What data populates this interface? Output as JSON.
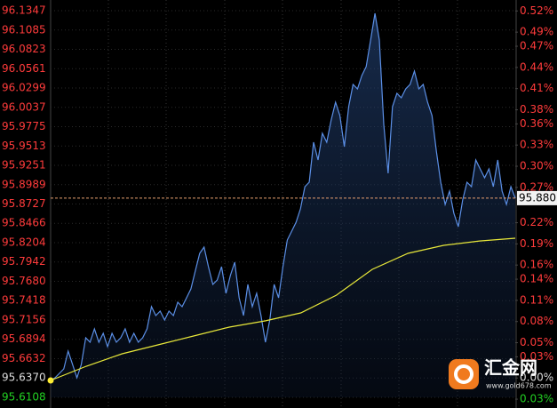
{
  "chart_data": {
    "type": "line",
    "ylim": [
      95.6108,
      96.1347
    ],
    "yticks": [
      96.1347,
      96.1085,
      96.0823,
      96.0561,
      96.0299,
      96.0037,
      95.9775,
      95.9513,
      95.9251,
      95.8989,
      95.8727,
      95.8466,
      95.8204,
      95.7942,
      {
        "value": 95.768,
        "label": "95.7680"
      },
      95.7418,
      95.7156,
      95.6894,
      95.6632,
      {
        "value": 95.637,
        "label": "95.6370"
      },
      95.6108
    ],
    "y2lim": [
      -0.0274,
      0.5204
    ],
    "y2ticks": [
      {
        "value": 0.52,
        "label": "0.52%"
      },
      {
        "value": 0.49,
        "label": "0.49%"
      },
      {
        "value": 0.47,
        "label": "0.47%"
      },
      {
        "value": 0.44,
        "label": "0.44%"
      },
      {
        "value": 0.41,
        "label": "0.41%"
      },
      {
        "value": 0.38,
        "label": "0.38%"
      },
      {
        "value": 0.36,
        "label": "0.36%"
      },
      {
        "value": 0.33,
        "label": "0.33%"
      },
      {
        "value": 0.3,
        "label": "0.30%"
      },
      {
        "value": 0.27,
        "label": "0.27%"
      },
      {
        "value": 0.22,
        "label": "0.22%"
      },
      {
        "value": 0.19,
        "label": "0.19%"
      },
      {
        "value": 0.16,
        "label": "0.16%"
      },
      {
        "value": 0.14,
        "label": "0.14%"
      },
      {
        "value": 0.11,
        "label": "0.11%"
      },
      {
        "value": 0.08,
        "label": "0.08%"
      },
      {
        "value": 0.05,
        "label": "0.05%"
      },
      {
        "value": 0.03,
        "label": "0.03%"
      },
      {
        "value": 0.0,
        "label": "0.00%"
      },
      {
        "value": -0.03,
        "label": "0.03%"
      }
    ],
    "up_color": "#ff3b3b",
    "down_color": "#22d022",
    "flat_color": "#dddddd",
    "grid": true,
    "current_price": 95.8807,
    "series": [
      {
        "color": "#5b8fe6",
        "fill": true,
        "values": [
          95.6337,
          95.6373,
          95.6433,
          95.6493,
          95.6734,
          95.6553,
          95.6373,
          95.6553,
          95.6915,
          95.6855,
          95.7035,
          95.6855,
          95.6975,
          95.6794,
          95.6975,
          95.6855,
          95.6915,
          95.7035,
          95.6855,
          95.6975,
          95.6855,
          95.6915,
          95.7035,
          95.7336,
          95.7216,
          95.7276,
          95.7156,
          95.7276,
          95.7216,
          95.7397,
          95.7336,
          95.7457,
          95.7577,
          95.7818,
          95.8059,
          95.8143,
          95.7878,
          95.7637,
          95.7698,
          95.7878,
          95.7517,
          95.7758,
          95.7939,
          95.7457,
          95.7216,
          95.7637,
          95.7336,
          95.7517,
          95.7216,
          95.6855,
          95.7156,
          95.7637,
          95.7457,
          95.7878,
          95.824,
          95.836,
          95.8481,
          95.8661,
          95.8962,
          95.9023,
          95.9564,
          95.9324,
          95.9685,
          95.9564,
          95.9866,
          96.0106,
          95.9926,
          95.9504,
          96.0046,
          96.0347,
          96.0287,
          96.0468,
          96.0588,
          96.095,
          96.1311,
          96.095,
          95.9805,
          95.9143,
          96.0046,
          96.0227,
          96.0167,
          96.0287,
          96.0347,
          96.0528,
          96.0287,
          96.0347,
          96.0106,
          95.9926,
          95.9444,
          95.9023,
          95.8721,
          95.8902,
          95.8601,
          95.842,
          95.8782,
          95.9023,
          95.8962,
          95.9324,
          95.9203,
          95.9083,
          95.9203,
          95.8962,
          95.9324,
          95.8902,
          95.8721,
          95.8962,
          95.8807
        ]
      },
      {
        "color": "#e8e83a",
        "fill": false,
        "values": [
          95.6337,
          95.6529,
          95.6698,
          95.6818,
          95.6939,
          95.7059,
          95.7144,
          95.7252,
          95.7493,
          95.7842,
          95.8059,
          95.8167,
          95.8227,
          95.8264
        ]
      }
    ]
  },
  "watermark": {
    "name": "汇金网",
    "url": "www.gold678.com"
  }
}
